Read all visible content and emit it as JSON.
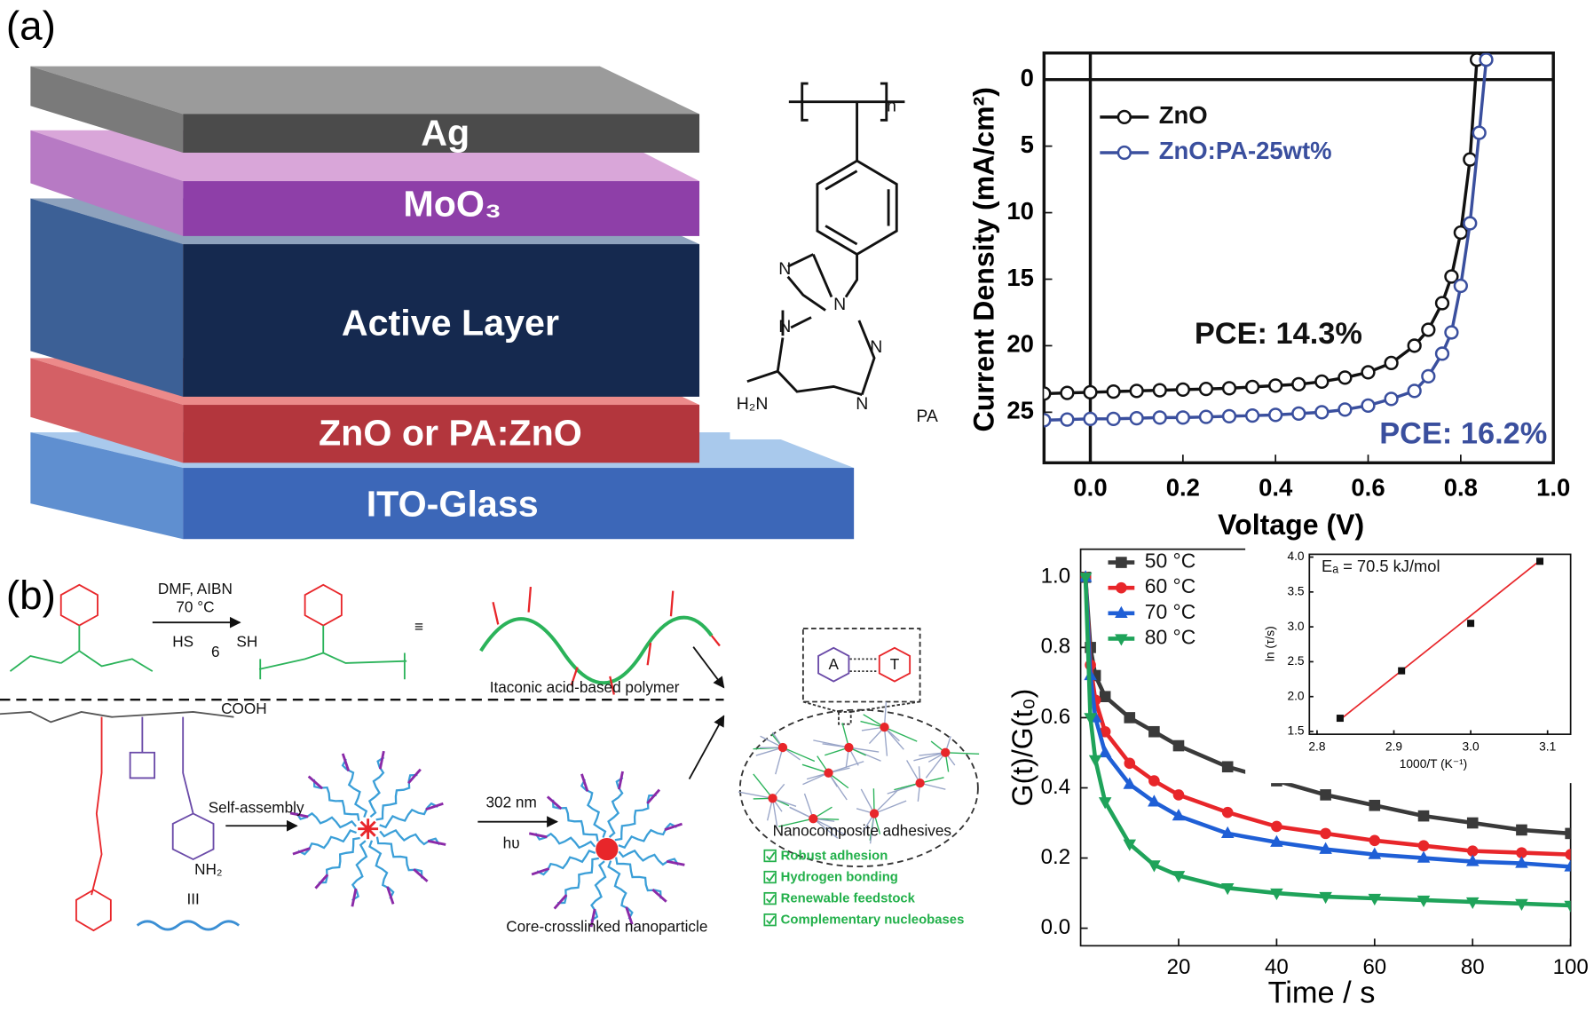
{
  "panel_labels": [
    "(a)",
    "(b)"
  ],
  "diagram_a": {
    "layers": [
      "Ag",
      "MoO₃",
      "Active Layer",
      "ZnO or PA:ZnO",
      "ITO-Glass"
    ]
  },
  "structure": {
    "repeat": "n",
    "atoms": [
      "N",
      "N",
      "N",
      "N",
      "N"
    ],
    "amine": "H₂N",
    "name": "PA"
  },
  "scheme_b": {
    "reagents": "DMF, AIBN",
    "temperature": "70 °C",
    "thiol_left": "HS",
    "thiol_right": "SH",
    "thiol_count": "6",
    "equivalent": "≡",
    "polymer_label": "Itaconic acid-based polymer",
    "acid": "COOH",
    "self_assembly": "Self-assembly",
    "wavelength": "302 nm",
    "light": "hυ",
    "amine": "NH₂",
    "symbol": "III",
    "nanoparticle_label": "Core-crosslinked nanoparticle",
    "adhesive_label": "Nanocomposite adhesives",
    "base_pair": [
      "A",
      "T"
    ],
    "features": [
      "Robust adhesion",
      "Hydrogen bonding",
      "Renewable feedstock",
      "Complementary nucleobases"
    ]
  },
  "chart_data": [
    {
      "type": "line",
      "x_label": "Voltage (V)",
      "y_label": "Current Density (mA/cm²)",
      "xlim": [
        -0.1,
        1.0
      ],
      "ylim": [
        28.8,
        -2
      ],
      "xticks": [
        {
          "value": 0,
          "label": "0.0"
        },
        0.2,
        0.4,
        0.6,
        0.8,
        {
          "value": 1,
          "label": "1.0"
        }
      ],
      "yticks": [
        0,
        5,
        10,
        15,
        20,
        25
      ],
      "zero_lines": true,
      "legend": "top-left",
      "marker_fill": "#ffffff",
      "series": [
        {
          "name": "ZnO",
          "color": "#111111",
          "marker": "circle",
          "x": [
            -0.1,
            -0.05,
            0,
            0.05,
            0.1,
            0.15,
            0.2,
            0.25,
            0.3,
            0.35,
            0.4,
            0.45,
            0.5,
            0.55,
            0.6,
            0.65,
            0.7,
            0.73,
            0.76,
            0.78,
            0.8,
            0.82,
            0.835
          ],
          "values": [
            23.6,
            23.55,
            23.5,
            23.45,
            23.4,
            23.35,
            23.3,
            23.25,
            23.2,
            23.1,
            23.0,
            22.9,
            22.7,
            22.4,
            22.0,
            21.3,
            20.0,
            18.8,
            16.8,
            14.8,
            11.5,
            6.0,
            -1.5
          ]
        },
        {
          "name": "ZnO:PA-25wt%",
          "color": "#3a4f9e",
          "marker": "circle",
          "x": [
            -0.1,
            -0.05,
            0,
            0.05,
            0.1,
            0.15,
            0.2,
            0.25,
            0.3,
            0.35,
            0.4,
            0.45,
            0.5,
            0.55,
            0.6,
            0.65,
            0.7,
            0.73,
            0.76,
            0.78,
            0.8,
            0.82,
            0.84,
            0.855
          ],
          "values": [
            25.6,
            25.55,
            25.5,
            25.5,
            25.45,
            25.4,
            25.4,
            25.35,
            25.3,
            25.25,
            25.2,
            25.1,
            25.0,
            24.8,
            24.5,
            24.0,
            23.4,
            22.3,
            20.6,
            19.0,
            15.5,
            10.8,
            4.0,
            -1.5
          ]
        }
      ],
      "annotations": [
        {
          "text": "PCE: 14.3%",
          "color": "#111111"
        },
        {
          "text": "PCE: 16.2%",
          "color": "#3a4f9e"
        }
      ]
    },
    {
      "type": "line",
      "x_label": "Time / s",
      "y_label": "G(t)/G(t₀)",
      "xlim": [
        0,
        100
      ],
      "ylim": [
        -0.05,
        1.08
      ],
      "xticks": [
        20,
        40,
        60,
        80,
        100
      ],
      "yticks": [
        {
          "value": 0,
          "label": "0.0"
        },
        0.2,
        0.4,
        0.6,
        0.8,
        {
          "value": 1,
          "label": "1.0"
        }
      ],
      "legend": "top-left",
      "x": [
        1,
        2,
        3,
        5,
        10,
        15,
        20,
        30,
        40,
        50,
        60,
        70,
        80,
        90,
        100
      ],
      "series": [
        {
          "name": "50 °C",
          "color": "#3a3a3a",
          "marker": "square",
          "values": [
            1.0,
            0.8,
            0.72,
            0.66,
            0.6,
            0.56,
            0.52,
            0.46,
            0.42,
            0.38,
            0.35,
            0.32,
            0.3,
            0.28,
            0.27
          ]
        },
        {
          "name": "60 °C",
          "color": "#e8262a",
          "marker": "circle",
          "values": [
            1.0,
            0.75,
            0.65,
            0.56,
            0.47,
            0.42,
            0.38,
            0.33,
            0.29,
            0.27,
            0.25,
            0.235,
            0.22,
            0.215,
            0.21
          ]
        },
        {
          "name": "70 °C",
          "color": "#1f5fd6",
          "marker": "triangle-up",
          "values": [
            1.0,
            0.72,
            0.6,
            0.5,
            0.41,
            0.36,
            0.32,
            0.27,
            0.245,
            0.225,
            0.21,
            0.2,
            0.19,
            0.185,
            0.175
          ]
        },
        {
          "name": "80 °C",
          "color": "#1fa35a",
          "marker": "triangle-down",
          "values": [
            1.0,
            0.6,
            0.48,
            0.36,
            0.24,
            0.18,
            0.15,
            0.115,
            0.1,
            0.09,
            0.085,
            0.08,
            0.075,
            0.07,
            0.065
          ]
        }
      ]
    },
    {
      "type": "scatter",
      "x_label": "1000/T (K⁻¹)",
      "y_label": "ln (τ/s)",
      "xlim": [
        2.79,
        3.13
      ],
      "ylim": [
        1.46,
        4.04
      ],
      "xticks": [
        2.8,
        2.9,
        {
          "value": 3,
          "label": "3.0"
        },
        3.1
      ],
      "yticks": [
        1.5,
        {
          "value": 2,
          "label": "2.0"
        },
        2.5,
        {
          "value": 3,
          "label": "3.0"
        },
        3.5,
        {
          "value": 4,
          "label": "4.0"
        }
      ],
      "series": [
        {
          "color": "#111111",
          "marker": "square",
          "x": [
            2.83,
            2.91,
            3.0,
            3.09
          ],
          "values": [
            1.69,
            2.37,
            3.05,
            3.94
          ]
        }
      ],
      "fit_line": {
        "color": "#e8262a",
        "x": [
          2.83,
          3.09
        ],
        "values": [
          1.67,
          3.95
        ]
      },
      "annotations": [
        {
          "text": "Eₐ = 70.5 kJ/mol",
          "color": "#111111"
        }
      ]
    }
  ]
}
